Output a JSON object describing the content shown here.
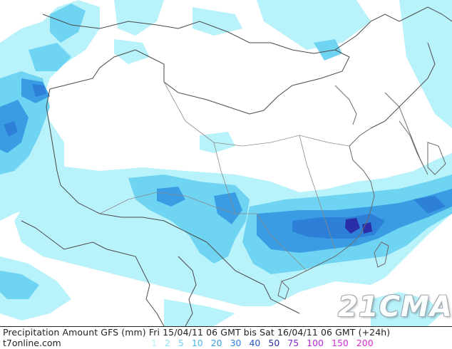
{
  "caption": "Precipitation Amount GFS (mm) Fri 15/04/11 06 GMT bis Sat 16/04/11 06 GMT (+24h)",
  "site": "t7online.com",
  "watermark": "21CMA",
  "legend": [
    {
      "label": "1",
      "color": "#b8f2fb"
    },
    {
      "label": "2",
      "color": "#8fe6f7"
    },
    {
      "label": "5",
      "color": "#6fd4f2"
    },
    {
      "label": "10",
      "color": "#4cbbec"
    },
    {
      "label": "20",
      "color": "#3a9de3"
    },
    {
      "label": "30",
      "color": "#2e7fd8"
    },
    {
      "label": "40",
      "color": "#2a57c4"
    },
    {
      "label": "50",
      "color": "#2a2fa8"
    },
    {
      "label": "75",
      "color": "#8a2ad0"
    },
    {
      "label": "100",
      "color": "#b42ad8"
    },
    {
      "label": "150",
      "color": "#d12ad8"
    },
    {
      "label": "200",
      "color": "#e02ad0"
    }
  ],
  "colors": {
    "border": "#4a4a4a",
    "province": "#8a8a8a",
    "light": "#b8f2fb",
    "l2": "#8fe6f7",
    "l3": "#6fd4f2",
    "l4": "#4cbbec",
    "l5": "#3a9de3",
    "l6": "#2e7fd8",
    "l7": "#2a2fa8"
  }
}
